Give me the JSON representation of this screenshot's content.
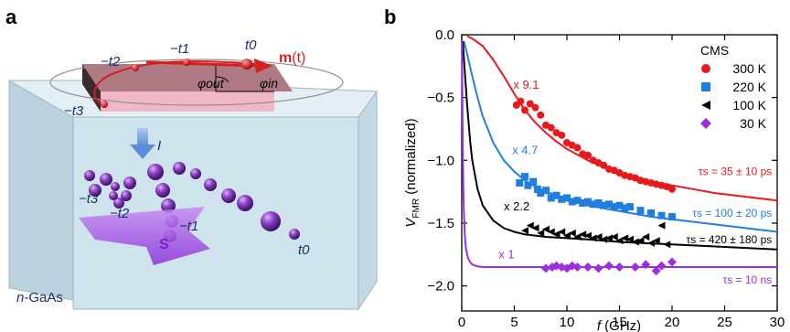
{
  "panel_a": {
    "label": "a",
    "labels": {
      "t0_top": "t0",
      "mt": "m(t)",
      "mt_m": "m",
      "mt_paren": "(t)",
      "t1_top": "−t1",
      "t2_top": "−t2",
      "t3_top": "−t3",
      "phi_out": "φout",
      "phi_in": "φin",
      "current": "I",
      "t3_bot": "−t3",
      "t2_bot": "−t2",
      "t1_bot": "−t1",
      "t0_bot": "t0",
      "spin": "S",
      "material": "n-GaAs"
    },
    "colors": {
      "box_face": "#cfe3ec",
      "magnet_top": "#b07a85",
      "magnet_front": "#f0b7c6",
      "magnet_side": "#3b2a2f",
      "orbit": "#d62020",
      "spheres": "#7a2fb0",
      "spin_arrow": "#a34fe0"
    }
  },
  "panel_b": {
    "label": "b",
    "chart_data": {
      "type": "scatter",
      "xlabel": "f (GHz)",
      "ylabel": "VFMR (normalized)",
      "xlim": [
        0,
        30
      ],
      "ylim": [
        -2.2,
        0.0
      ],
      "xticks": [
        0,
        5,
        10,
        15,
        20,
        25,
        30
      ],
      "yticks": [
        0.0,
        -0.5,
        -1.0,
        -1.5,
        -2.0
      ],
      "xtick_labels": [
        "0",
        "5",
        "10",
        "15",
        "20",
        "25",
        "30"
      ],
      "ytick_labels": [
        "0.0",
        "−0.5",
        "−1.0",
        "−1.5",
        "−2.0"
      ],
      "legend_title": "CMS",
      "legend_position": "top-right",
      "grid": false,
      "series": [
        {
          "name": "300 K",
          "color": "#e8191d",
          "marker": "circle",
          "scale_label": "x 9.1",
          "tau_label": "τs = 35 ± 10 ps",
          "x": [
            5.2,
            5.6,
            6.0,
            6.5,
            7.0,
            7.5,
            8.0,
            8.5,
            9.0,
            9.5,
            10.0,
            10.5,
            11.0,
            11.5,
            12.0,
            12.5,
            13.0,
            13.5,
            14.0,
            14.5,
            15.0,
            15.5,
            16.0,
            16.5,
            17.0,
            17.5,
            18.0,
            18.5,
            19.0,
            19.5,
            20.0
          ],
          "y": [
            -0.56,
            -0.53,
            -0.6,
            -0.55,
            -0.58,
            -0.64,
            -0.72,
            -0.74,
            -0.78,
            -0.8,
            -0.86,
            -0.88,
            -0.9,
            -0.95,
            -0.96,
            -1.0,
            -1.02,
            -1.04,
            -1.07,
            -1.08,
            -1.1,
            -1.12,
            -1.13,
            -1.14,
            -1.16,
            -1.17,
            -1.18,
            -1.19,
            -1.2,
            -1.21,
            -1.23
          ],
          "fit_x": [
            0.5,
            1,
            2,
            3,
            4,
            5,
            6,
            7,
            8,
            9,
            10,
            12,
            14,
            16,
            18,
            20,
            22,
            24,
            26,
            28,
            30
          ],
          "fit_y": [
            -0.01,
            -0.03,
            -0.09,
            -0.2,
            -0.33,
            -0.47,
            -0.6,
            -0.7,
            -0.78,
            -0.85,
            -0.91,
            -1.0,
            -1.07,
            -1.12,
            -1.17,
            -1.2,
            -1.23,
            -1.26,
            -1.28,
            -1.3,
            -1.32
          ]
        },
        {
          "name": "220 K",
          "color": "#1f7fe0",
          "marker": "square",
          "scale_label": "x 4.7",
          "tau_label": "τs = 100 ± 20 ps",
          "x": [
            5.5,
            6.0,
            6.3,
            6.8,
            7.2,
            7.5,
            8.0,
            8.5,
            9.0,
            9.5,
            10.0,
            10.5,
            11.0,
            11.5,
            12.0,
            12.5,
            13.0,
            13.5,
            14.0,
            14.5,
            15.0,
            15.5,
            16.0,
            17.0,
            18.0,
            19.0,
            20.0
          ],
          "y": [
            -1.18,
            -1.13,
            -1.2,
            -1.17,
            -1.23,
            -1.26,
            -1.24,
            -1.3,
            -1.28,
            -1.31,
            -1.3,
            -1.33,
            -1.32,
            -1.34,
            -1.33,
            -1.35,
            -1.34,
            -1.36,
            -1.35,
            -1.37,
            -1.36,
            -1.38,
            -1.37,
            -1.4,
            -1.42,
            -1.44,
            -1.45
          ],
          "fit_x": [
            0.2,
            0.5,
            1,
            1.5,
            2,
            3,
            4,
            5,
            6,
            7,
            8,
            10,
            12,
            14,
            16,
            18,
            20,
            22,
            24,
            26,
            28,
            30
          ],
          "fit_y": [
            -0.05,
            -0.15,
            -0.33,
            -0.5,
            -0.65,
            -0.86,
            -1.0,
            -1.09,
            -1.16,
            -1.21,
            -1.25,
            -1.31,
            -1.36,
            -1.39,
            -1.42,
            -1.45,
            -1.47,
            -1.49,
            -1.51,
            -1.53,
            -1.55,
            -1.57
          ]
        },
        {
          "name": "100 K",
          "color": "#000000",
          "marker": "triangle-left",
          "scale_label": "x 2.2",
          "tau_label": "τs = 420 ± 180 ps",
          "x": [
            6.0,
            6.5,
            7.0,
            7.5,
            8.0,
            8.5,
            9.0,
            9.5,
            10.0,
            10.5,
            11.0,
            11.5,
            12.0,
            12.5,
            13.0,
            13.5,
            14.0,
            14.5,
            15.0,
            15.5,
            16.0,
            16.5,
            17.0,
            17.5,
            18.0,
            18.5,
            19.0,
            19.5
          ],
          "y": [
            -1.56,
            -1.52,
            -1.54,
            -1.58,
            -1.55,
            -1.57,
            -1.59,
            -1.57,
            -1.6,
            -1.58,
            -1.61,
            -1.59,
            -1.6,
            -1.62,
            -1.61,
            -1.63,
            -1.62,
            -1.61,
            -1.64,
            -1.62,
            -1.63,
            -1.65,
            -1.64,
            -1.61,
            -1.66,
            -1.64,
            -1.52,
            -1.67
          ],
          "fit_x": [
            0.1,
            0.3,
            0.5,
            0.8,
            1,
            1.5,
            2,
            3,
            4,
            5,
            6,
            8,
            10,
            12,
            15,
            20,
            25,
            30
          ],
          "fit_y": [
            -0.05,
            -0.3,
            -0.55,
            -0.85,
            -1.0,
            -1.23,
            -1.36,
            -1.48,
            -1.54,
            -1.57,
            -1.59,
            -1.61,
            -1.62,
            -1.63,
            -1.65,
            -1.67,
            -1.69,
            -1.71
          ]
        },
        {
          "name": "30 K",
          "color": "#9b2fe0",
          "marker": "diamond",
          "scale_label": "x 1",
          "tau_label": "τs = 10 ns",
          "x": [
            8.0,
            8.6,
            9.0,
            9.5,
            10.0,
            10.5,
            11.0,
            12.0,
            13.0,
            14.0,
            15.0,
            16.5,
            17.5,
            18.5,
            19.0,
            20.0
          ],
          "y": [
            -1.86,
            -1.85,
            -1.84,
            -1.85,
            -1.86,
            -1.84,
            -1.85,
            -1.85,
            -1.86,
            -1.84,
            -1.85,
            -1.85,
            -1.83,
            -1.88,
            -1.84,
            -1.81
          ],
          "fit_x": [
            0.02,
            0.05,
            0.1,
            0.15,
            0.2,
            0.3,
            0.4,
            0.6,
            0.8,
            1,
            1.5,
            2,
            3,
            5,
            10,
            20,
            30
          ],
          "fit_y": [
            -0.05,
            -0.4,
            -0.9,
            -1.2,
            -1.4,
            -1.6,
            -1.7,
            -1.78,
            -1.81,
            -1.83,
            -1.845,
            -1.85,
            -1.85,
            -1.85,
            -1.85,
            -1.85,
            -1.85
          ]
        }
      ]
    }
  }
}
